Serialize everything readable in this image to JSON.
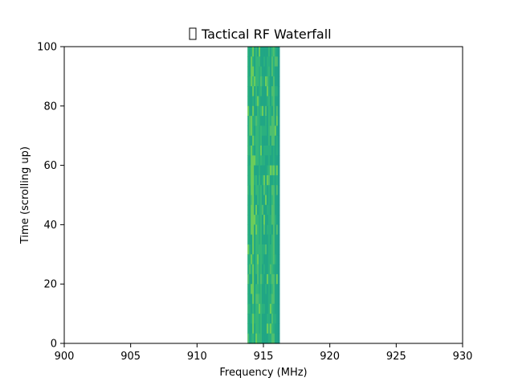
{
  "chart_data": {
    "type": "heatmap",
    "title": "Tactical RF Waterfall",
    "title_prefix_glyph": "box-icon",
    "xlabel": "Frequency (MHz)",
    "ylabel": "Time (scrolling up)",
    "xlim": [
      900,
      930
    ],
    "ylim": [
      0,
      100
    ],
    "x_ticks": [
      900,
      905,
      910,
      915,
      920,
      925,
      930
    ],
    "y_ticks": [
      0,
      20,
      40,
      60,
      80,
      100
    ],
    "x_tick_labels": [
      "900",
      "905",
      "910",
      "915",
      "920",
      "925",
      "930"
    ],
    "y_tick_labels": [
      "0",
      "20",
      "40",
      "60",
      "80",
      "100"
    ],
    "grid": false,
    "signal_band": {
      "freq_start": 913.8,
      "freq_end": 916.2,
      "time_start": 0,
      "time_end": 100
    },
    "colormap": "viridis",
    "band_colors": [
      "#21a685",
      "#2ab07f",
      "#35b779",
      "#4fbf6f",
      "#6ccd5a",
      "#1f9e89"
    ],
    "background_color": "#ffffff"
  }
}
